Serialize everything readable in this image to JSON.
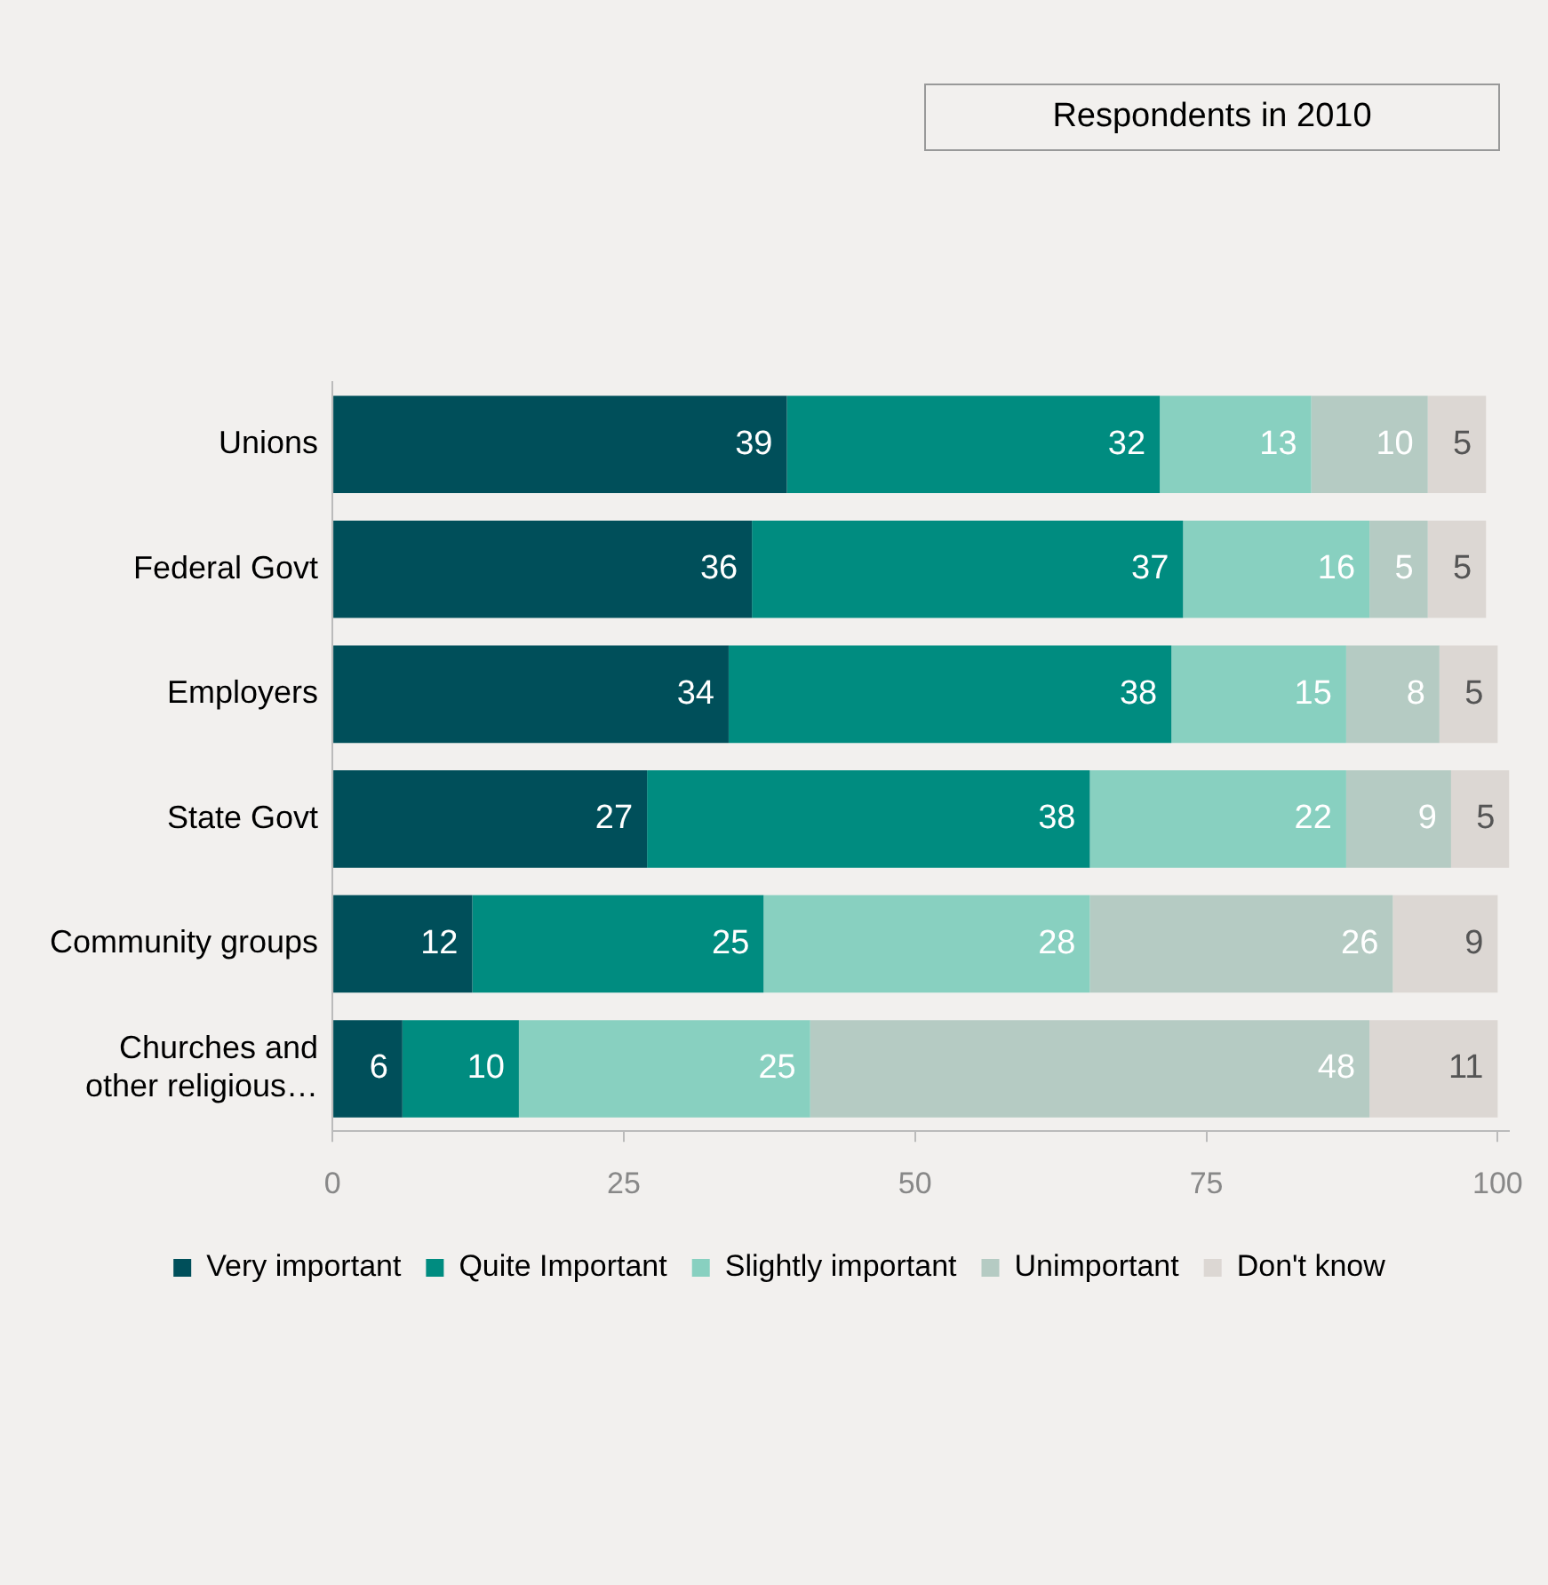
{
  "chart_data": {
    "type": "bar",
    "orientation": "horizontal",
    "stacked": true,
    "title": "Respondents in 2010",
    "categories": [
      "Unions",
      "Federal Govt",
      "Employers",
      "State Govt",
      "Community groups",
      "Churches and other religious…"
    ],
    "series": [
      {
        "name": "Very important",
        "color": "#004f5a",
        "values": [
          39,
          36,
          34,
          27,
          12,
          6
        ]
      },
      {
        "name": "Quite Important",
        "color": "#008c80",
        "values": [
          32,
          37,
          38,
          38,
          25,
          10
        ]
      },
      {
        "name": "Slightly important",
        "color": "#88d0c0",
        "values": [
          13,
          16,
          15,
          22,
          28,
          25
        ]
      },
      {
        "name": "Unimportant",
        "color": "#b5cbc3",
        "values": [
          10,
          5,
          8,
          9,
          26,
          48
        ]
      },
      {
        "name": "Don't know",
        "color": "#dcd7d3",
        "values": [
          5,
          5,
          5,
          5,
          9,
          11
        ]
      }
    ],
    "xlim": [
      0,
      101
    ],
    "xticks": [
      0,
      25,
      50,
      75,
      100
    ],
    "grid": false,
    "legend": "bottom",
    "data_labels": true
  }
}
